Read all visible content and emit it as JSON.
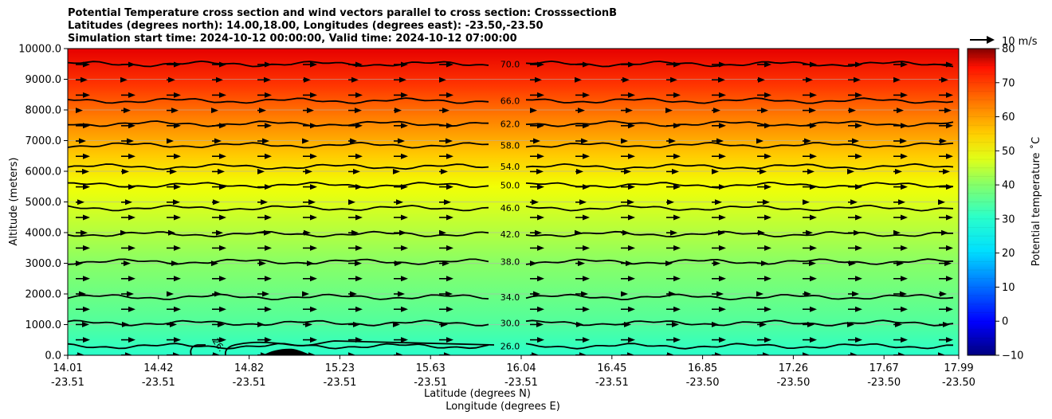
{
  "chart_data": {
    "type": "contour",
    "title_lines": [
      "Potential Temperature cross section and wind vectors parallel to cross section: CrosssectionB",
      "Latitudes (degrees north): 14.00,18.00, Longitudes (degrees east): -23.50,-23.50",
      "Simulation start time: 2024-10-12 00:00:00, Valid time: 2024-10-12 07:00:00"
    ],
    "xlabel_line1": "Latitude (degrees N)",
    "xlabel_line2": "Longitude (degrees E)",
    "ylabel": "Altitude (meters)",
    "ylim": [
      0,
      10000
    ],
    "y_ticks": [
      "0.0",
      "1000.0",
      "2000.0",
      "3000.0",
      "4000.0",
      "5000.0",
      "6000.0",
      "7000.0",
      "8000.0",
      "9000.0",
      "10000.0"
    ],
    "y_tick_values": [
      0,
      1000,
      2000,
      3000,
      4000,
      5000,
      6000,
      7000,
      8000,
      9000,
      10000
    ],
    "x_ticks": [
      {
        "lat": "14.01",
        "lon": "-23.51"
      },
      {
        "lat": "14.42",
        "lon": "-23.51"
      },
      {
        "lat": "14.82",
        "lon": "-23.51"
      },
      {
        "lat": "15.23",
        "lon": "-23.51"
      },
      {
        "lat": "15.63",
        "lon": "-23.51"
      },
      {
        "lat": "16.04",
        "lon": "-23.51"
      },
      {
        "lat": "16.45",
        "lon": "-23.51"
      },
      {
        "lat": "16.85",
        "lon": "-23.50"
      },
      {
        "lat": "17.26",
        "lon": "-23.50"
      },
      {
        "lat": "17.67",
        "lon": "-23.50"
      },
      {
        "lat": "17.99",
        "lon": "-23.50"
      }
    ],
    "contour_labels": [
      {
        "text": "70.0",
        "alt": 9500
      },
      {
        "text": "66.0",
        "alt": 8300
      },
      {
        "text": "62.0",
        "alt": 7550
      },
      {
        "text": "58.0",
        "alt": 6850
      },
      {
        "text": "54.0",
        "alt": 6150
      },
      {
        "text": "50.0",
        "alt": 5550
      },
      {
        "text": "46.0",
        "alt": 4800
      },
      {
        "text": "42.0",
        "alt": 3950
      },
      {
        "text": "38.0",
        "alt": 3050
      },
      {
        "text": "34.0",
        "alt": 1900
      },
      {
        "text": "30.0",
        "alt": 1050
      },
      {
        "text": "26.0",
        "alt": 300
      }
    ],
    "low_label": "26.",
    "colorbar": {
      "label": "Potential temperature $^\\circ$C",
      "label_display": "Potential temperature ˚C",
      "range": [
        -10,
        80
      ],
      "ticks": [
        "−10",
        "0",
        "10",
        "20",
        "30",
        "40",
        "50",
        "60",
        "70",
        "80"
      ],
      "tick_values": [
        -10,
        0,
        10,
        20,
        30,
        40,
        50,
        60,
        70,
        80
      ]
    },
    "quiver_key": "10 m/s",
    "colors": {
      "terrain": "#000000",
      "contour": "#000000"
    }
  }
}
